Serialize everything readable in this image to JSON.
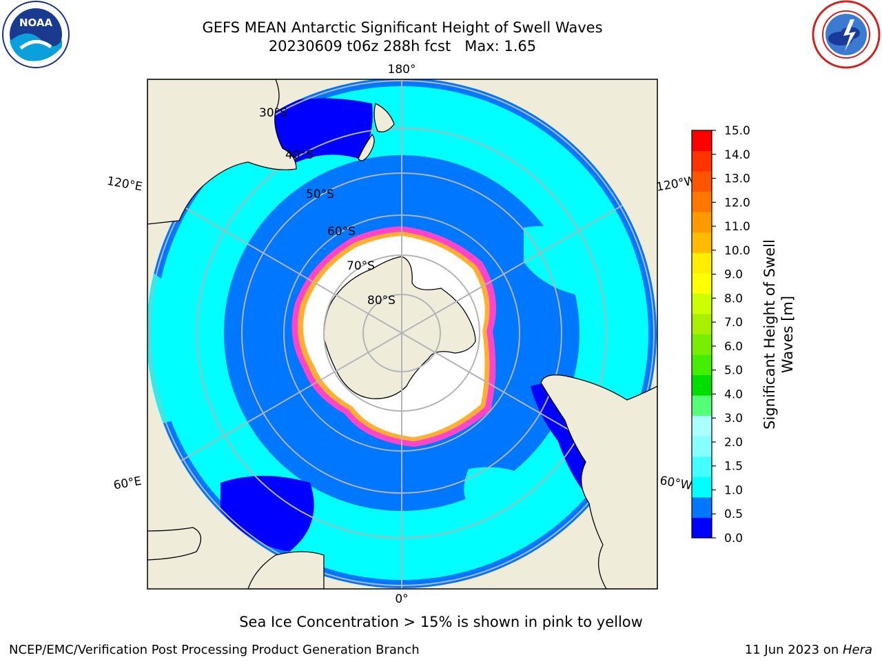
{
  "title": {
    "line1": "GEFS MEAN Antarctic Significant Height of Swell Waves",
    "line2": "20230609 t06z 288h fcst   Max: 1.65"
  },
  "logos": {
    "left": "noaa-logo",
    "right": "nws-logo",
    "left_text": "NOAA"
  },
  "map": {
    "projection": "south-polar-stereographic",
    "longitude_labels": [
      "180°",
      "120°E",
      "120°W",
      "60°E",
      "60°W",
      "0°"
    ],
    "latitude_labels": [
      "30°S",
      "40°S",
      "50°S",
      "60°S",
      "70°S",
      "80°S"
    ],
    "colors": {
      "land": "#efedda",
      "ice": "#ffffff",
      "grid": "#b4b4b4",
      "coast": "#000000"
    }
  },
  "colorbar": {
    "label_line1": "Significant Height of Swell",
    "label_line2": "Waves [m]",
    "ticks": [
      "15.0",
      "14.0",
      "13.0",
      "12.0",
      "11.0",
      "10.0",
      "9.0",
      "8.0",
      "7.0",
      "6.0",
      "5.0",
      "4.0",
      "3.0",
      "2.0",
      "1.5",
      "1.0",
      "0.5",
      "0.0"
    ],
    "colors": [
      "#0000ff",
      "#0077ff",
      "#00ffff",
      "#44ffff",
      "#88ffff",
      "#aaffff",
      "#55ff77",
      "#00dd00",
      "#44ee00",
      "#77ee00",
      "#aaee00",
      "#ccff00",
      "#ffff00",
      "#ffee00",
      "#ffbb00",
      "#ff9900",
      "#ff7700",
      "#ff5500",
      "#ff3300",
      "#ff0000"
    ]
  },
  "footer": {
    "note": "Sea Ice Concentration > 15% is shown in pink to yellow",
    "branch": "NCEP/EMC/Verification Post Processing Product Generation Branch",
    "date": "11 Jun 2023 on ",
    "date_host": "Hera"
  }
}
